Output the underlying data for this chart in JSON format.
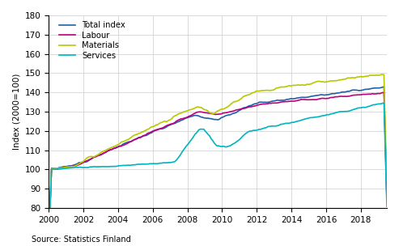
{
  "title": "",
  "ylabel": "Index (2000=100)",
  "xlabel": "",
  "source": "Source: Statistics Finland",
  "ylim": [
    80,
    180
  ],
  "xlim": [
    2000.0,
    2019.5
  ],
  "yticks": [
    80,
    90,
    100,
    110,
    120,
    130,
    140,
    150,
    160,
    170,
    180
  ],
  "xticks": [
    2000,
    2002,
    2004,
    2006,
    2008,
    2010,
    2012,
    2014,
    2016,
    2018
  ],
  "colors": {
    "total": "#2060a8",
    "labour": "#c0007a",
    "materials": "#b8c800",
    "services": "#00b4c0"
  },
  "legend_labels": [
    "Total index",
    "Labour",
    "Materials",
    "Services"
  ],
  "linewidth": 1.2
}
